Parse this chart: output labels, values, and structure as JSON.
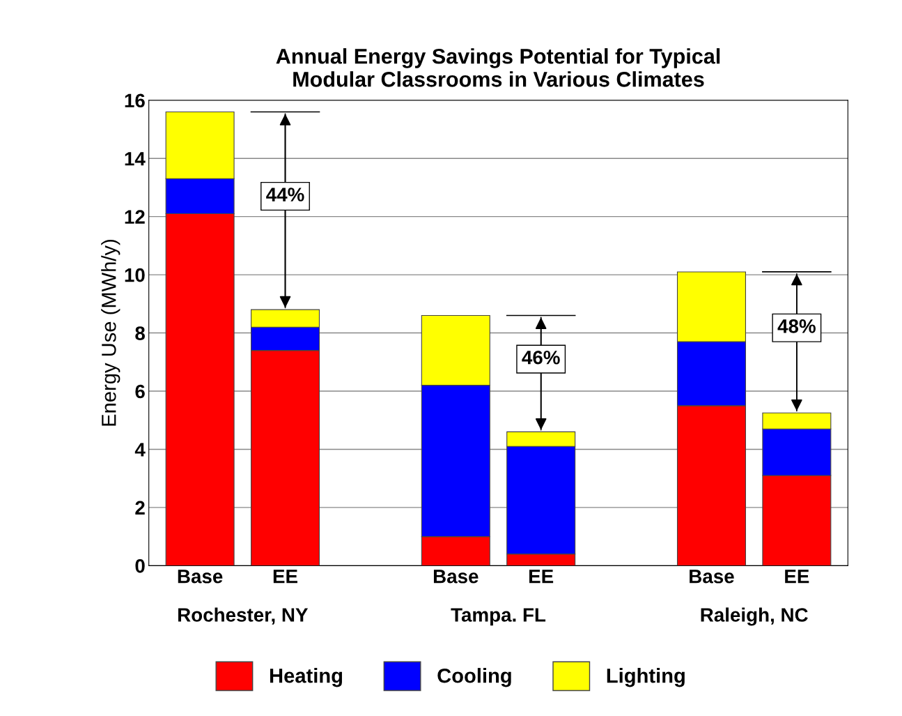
{
  "chart_data": {
    "type": "bar",
    "title": "Annual Energy Savings Potential for Typical\nModular Classrooms in Various Climates",
    "ylabel": "Energy Use (MWh/y)",
    "categories": [
      "Base",
      "EE",
      "Base",
      "EE",
      "Base",
      "EE"
    ],
    "stacked": true,
    "series": [
      {
        "name": "Heating",
        "color": "#ff0000",
        "values": [
          12.1,
          7.4,
          1.0,
          0.4,
          5.5,
          3.1
        ]
      },
      {
        "name": "Cooling",
        "color": "#0000ff",
        "values": [
          1.2,
          0.8,
          5.2,
          3.7,
          2.2,
          1.6
        ]
      },
      {
        "name": "Lighting",
        "color": "#ffff00",
        "values": [
          2.3,
          0.6,
          2.4,
          0.5,
          2.4,
          0.55
        ]
      }
    ],
    "annotations": [
      "Rochester, NY",
      "Tampa. FL",
      "Raleigh, NC",
      "44%",
      "46%",
      "48%"
    ],
    "ylim": [
      0,
      16
    ],
    "yticks": [
      0,
      2,
      4,
      6,
      8,
      10,
      12,
      14,
      16
    ],
    "grid": "y",
    "legend": "bottom"
  }
}
